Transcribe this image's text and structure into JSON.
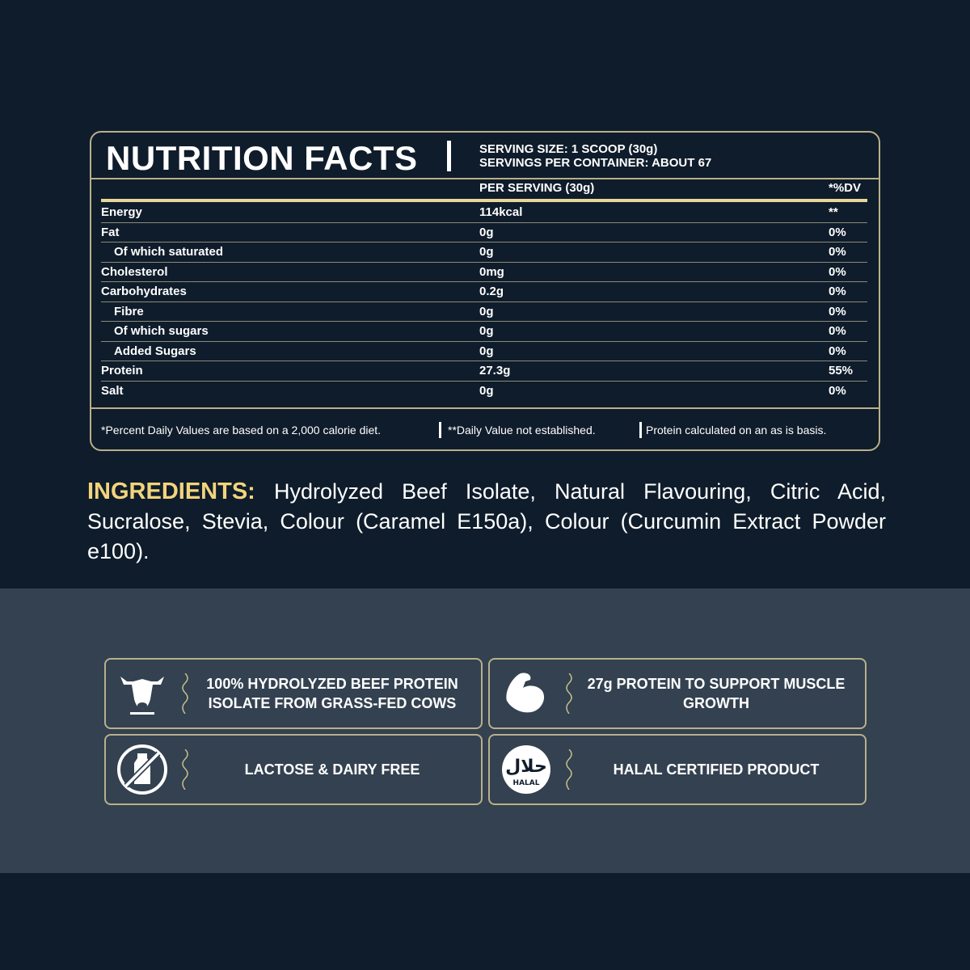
{
  "nutrition": {
    "title": "NUTRITION FACTS",
    "serving_size": "SERVING SIZE: 1 SCOOP (30g)",
    "servings_per_container": "SERVINGS PER CONTAINER: ABOUT 67",
    "col_per_serving": "PER SERVING (30g)",
    "col_dv": "*%DV",
    "rows": [
      {
        "label": "Energy",
        "value": "114kcal",
        "dv": "**",
        "indent": false
      },
      {
        "label": "Fat",
        "value": "0g",
        "dv": "0%",
        "indent": false
      },
      {
        "label": "Of which saturated",
        "value": "0g",
        "dv": "0%",
        "indent": true
      },
      {
        "label": "Cholesterol",
        "value": "0mg",
        "dv": "0%",
        "indent": false
      },
      {
        "label": "Carbohydrates",
        "value": "0.2g",
        "dv": "0%",
        "indent": false
      },
      {
        "label": "Fibre",
        "value": "0g",
        "dv": "0%",
        "indent": true
      },
      {
        "label": "Of which sugars",
        "value": "0g",
        "dv": "0%",
        "indent": true
      },
      {
        "label": "Added Sugars",
        "value": "0g",
        "dv": "0%",
        "indent": true
      },
      {
        "label": "Protein",
        "value": "27.3g",
        "dv": "55%",
        "indent": false
      },
      {
        "label": "Salt",
        "value": "0g",
        "dv": "0%",
        "indent": false
      }
    ],
    "footnotes": [
      "*Percent Daily Values are based on a 2,000 calorie diet.",
      "**Daily Value not established.",
      "Protein calculated on an as is basis."
    ]
  },
  "ingredients": {
    "label": "INGREDIENTS:",
    "text": " Hydrolyzed Beef Isolate, Natural Flavouring, Citric Acid, Sucralose, Stevia, Colour (Caramel E150a), Colour (Curcumin Extract Powder e100)."
  },
  "features": [
    {
      "icon": "cow-icon",
      "text": "100% HYDROLYZED BEEF PROTEIN ISOLATE FROM GRASS-FED COWS"
    },
    {
      "icon": "flexed-arm-icon",
      "text": "27g PROTEIN TO SUPPORT MUSCLE GROWTH"
    },
    {
      "icon": "no-dairy-icon",
      "text": "LACTOSE & DAIRY FREE"
    },
    {
      "icon": "halal-icon",
      "text": "HALAL CERTIFIED PRODUCT",
      "badge": "HALAL"
    }
  ],
  "colors": {
    "background": "#0f1c2b",
    "band": "#334150",
    "border_gold": "#b9b08a",
    "ingredients_label": "#f2d47c"
  }
}
